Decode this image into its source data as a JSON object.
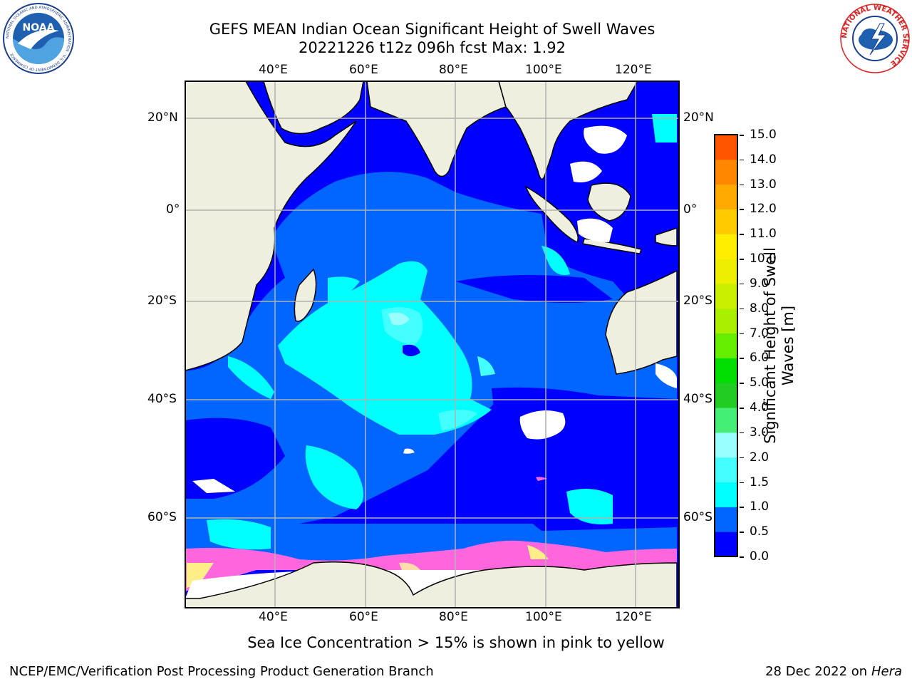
{
  "title": {
    "line1": "GEFS MEAN Indian Ocean Significant Height of Swell Waves",
    "line2": "20221226 t12z 096h fcst   Max: 1.92"
  },
  "map": {
    "lon_labels": [
      "40°E",
      "60°E",
      "80°E",
      "100°E",
      "120°E"
    ],
    "lat_labels": [
      "20°N",
      "0°",
      "20°S",
      "40°S",
      "60°S"
    ],
    "extent": {
      "lon_min": 20,
      "lon_max": 130,
      "lat_min": -73,
      "lat_max": 28
    },
    "colors": {
      "land": "#efefdf",
      "grid": "#b0b0b0"
    }
  },
  "colorbar": {
    "label": "Significant Height of Swell Waves [m]",
    "label_line1": "Significant Height of Swell",
    "label_line2": "Waves [m]",
    "ticks": [
      "15.0",
      "14.0",
      "13.0",
      "12.0",
      "11.0",
      "10.0",
      "9.0",
      "8.0",
      "7.0",
      "6.0",
      "5.0",
      "4.0",
      "3.0",
      "2.0",
      "1.5",
      "1.0",
      "0.5",
      "0.0"
    ],
    "colors": [
      "#0000ff",
      "#0066ff",
      "#00ffff",
      "#44ffff",
      "#99ffff",
      "#44ee77",
      "#22cc22",
      "#00dd00",
      "#66ee00",
      "#aaee00",
      "#ccee00",
      "#eeee00",
      "#ffee00",
      "#ffcc00",
      "#ffaa00",
      "#ff8800",
      "#ff5500",
      "#ff2200",
      "#ff0000"
    ]
  },
  "ice_note": "Sea Ice Concentration > 15% is shown in pink to yellow",
  "footer": {
    "left": "NCEP/EMC/Verification Post Processing Product Generation Branch",
    "right_date": "28 Dec 2022 on",
    "right_machine": "Hera"
  },
  "logos": {
    "noaa_text": "NOAA",
    "noaa_ring": "NATIONAL OCEANIC AND ATMOSPHERIC ADMINISTRATION · U.S. DEPARTMENT OF COMMERCE",
    "nws_ring": "NATIONAL WEATHER SERVICE"
  }
}
